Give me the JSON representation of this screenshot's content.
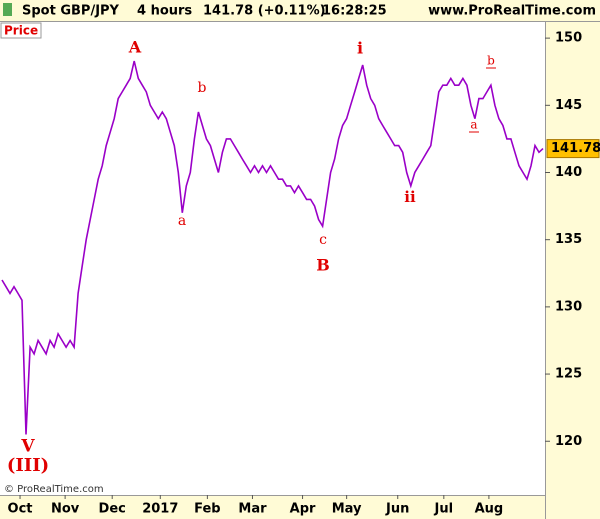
{
  "chart_data": {
    "type": "line",
    "header": {
      "instrument": "Spot GBP/JPY",
      "timeframe": "4 hours",
      "last": "141.78 (+0.11%)",
      "time": "16:28:25",
      "site": "www.ProRealTime.com"
    },
    "panel_label": "Price",
    "copyright": "© ProRealTime.com",
    "series": [
      {
        "name": "Spot GBP/JPY",
        "color": "#9a00c8",
        "values": [
          132,
          131.5,
          131,
          131.5,
          131,
          130.5,
          120.5,
          127,
          126.5,
          127.5,
          127,
          126.5,
          127.5,
          127,
          128,
          127.5,
          127,
          127.5,
          127,
          131,
          133,
          135,
          136.5,
          138,
          139.5,
          140.5,
          142,
          143,
          144,
          145.5,
          146,
          146.5,
          147,
          148.3,
          147,
          146.5,
          146,
          145,
          144.5,
          144,
          144.5,
          144,
          143,
          142,
          140,
          137,
          139,
          140,
          142.5,
          144.5,
          143.5,
          142.5,
          142,
          141,
          140,
          141.5,
          142.5,
          142.5,
          142,
          141.5,
          141,
          140.5,
          140,
          140.5,
          140,
          140.5,
          140,
          140.5,
          140,
          139.5,
          139.5,
          139,
          139,
          138.5,
          139,
          138.5,
          138,
          138,
          137.5,
          136.5,
          136,
          138,
          140,
          141,
          142.5,
          143.5,
          144,
          145,
          146,
          147,
          148,
          146.5,
          145.5,
          145,
          144,
          143.5,
          143,
          142.5,
          142,
          142,
          141.5,
          140,
          139,
          140,
          140.5,
          141,
          141.5,
          142,
          144,
          146,
          146.5,
          146.5,
          147,
          146.5,
          146.5,
          147,
          146.5,
          145,
          144,
          145.5,
          145.5,
          146,
          146.5,
          145,
          144,
          143.5,
          142.5,
          142.5,
          141.5,
          140.5,
          140,
          139.5,
          140.5,
          142,
          141.5,
          141.78
        ]
      }
    ],
    "xlim": [
      0,
      135
    ],
    "xticks": [
      {
        "value": 4.5,
        "label": "Oct"
      },
      {
        "value": 15.75,
        "label": "Nov"
      },
      {
        "value": 27.5,
        "label": "Dec"
      },
      {
        "value": 39.5,
        "label": "2017"
      },
      {
        "value": 51.25,
        "label": "Feb"
      },
      {
        "value": 62.5,
        "label": "Mar"
      },
      {
        "value": 75,
        "label": "Apr"
      },
      {
        "value": 86,
        "label": "May"
      },
      {
        "value": 98.75,
        "label": "Jun"
      },
      {
        "value": 110.25,
        "label": "Jul"
      },
      {
        "value": 121.5,
        "label": "Aug"
      }
    ],
    "ylim": [
      116,
      151.2
    ],
    "yticks": [
      120,
      125,
      130,
      135,
      140,
      145,
      150
    ],
    "annotations": [
      {
        "text": "A"
      },
      {
        "text": "a"
      },
      {
        "text": "b"
      },
      {
        "text": "c"
      },
      {
        "text": "B"
      },
      {
        "text": "i"
      },
      {
        "text": "ii"
      },
      {
        "text": "a"
      },
      {
        "text": "b"
      },
      {
        "text": "V"
      },
      {
        "text": "(III)"
      }
    ],
    "annotation_color": "#e00000"
  }
}
